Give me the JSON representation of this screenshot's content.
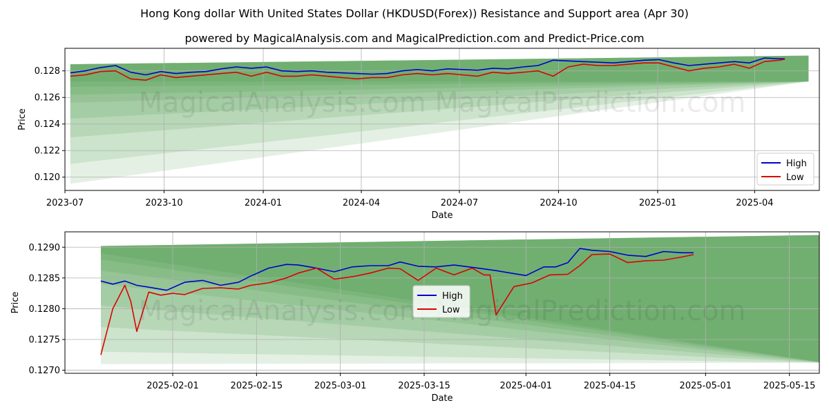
{
  "title": "Hong Kong dollar With United States Dollar (HKDUSD(Forex)) Resistance and Support area (Apr 30)",
  "subtitle": "powered by MagicalAnalysis.com and MagicalPrediction.com and Predict-Price.com",
  "watermarks": [
    "MagicalAnalysis.com",
    "MagicalPrediction.com"
  ],
  "colors": {
    "high": "#0000cc",
    "low": "#dd0000",
    "band": "#2e8b2e",
    "grid": "#b0b0b0"
  },
  "chart_data": [
    {
      "type": "line",
      "xlabel": "Date",
      "ylabel": "Price",
      "ylim": [
        0.119,
        0.1297
      ],
      "xlim": [
        "2023-07-01",
        "2025-05-31"
      ],
      "yticks": [
        0.12,
        0.122,
        0.124,
        0.126,
        0.128
      ],
      "ytick_labels": [
        "0.120",
        "0.122",
        "0.124",
        "0.126",
        "0.128"
      ],
      "xticks": [
        "2023-07-01",
        "2023-10-01",
        "2024-01-01",
        "2024-04-01",
        "2024-07-01",
        "2024-10-01",
        "2025-01-01",
        "2025-04-01"
      ],
      "xtick_labels": [
        "2023-07",
        "2023-10",
        "2024-01",
        "2024-04",
        "2024-07",
        "2024-10",
        "2025-01",
        "2025-04"
      ],
      "legend": {
        "position": "bottom-right",
        "entries": [
          "High",
          "Low"
        ]
      },
      "band": {
        "start": "2023-07-06",
        "end": "2025-05-21",
        "top_start": 0.1285,
        "top_end": 0.12915,
        "bottom_starts": [
          0.1272,
          0.1268,
          0.1262,
          0.1256,
          0.1244,
          0.123,
          0.121,
          0.1195
        ],
        "bottom_end": 0.1272
      },
      "series": [
        {
          "name": "High",
          "x": [
            "2023-07-06",
            "2023-07-20",
            "2023-08-03",
            "2023-08-17",
            "2023-08-31",
            "2023-09-14",
            "2023-09-28",
            "2023-10-12",
            "2023-10-26",
            "2023-11-09",
            "2023-11-23",
            "2023-12-07",
            "2023-12-21",
            "2024-01-04",
            "2024-01-18",
            "2024-02-01",
            "2024-02-15",
            "2024-02-29",
            "2024-03-14",
            "2024-03-28",
            "2024-04-11",
            "2024-04-25",
            "2024-05-09",
            "2024-05-23",
            "2024-06-06",
            "2024-06-20",
            "2024-07-04",
            "2024-07-18",
            "2024-08-01",
            "2024-08-15",
            "2024-08-29",
            "2024-09-12",
            "2024-09-26",
            "2024-10-10",
            "2024-10-24",
            "2024-11-07",
            "2024-11-21",
            "2024-12-05",
            "2024-12-19",
            "2025-01-02",
            "2025-01-16",
            "2025-01-30",
            "2025-02-13",
            "2025-02-27",
            "2025-03-13",
            "2025-03-27",
            "2025-04-10",
            "2025-04-24",
            "2025-04-29"
          ],
          "values": [
            0.12785,
            0.128,
            0.12825,
            0.1284,
            0.1279,
            0.1277,
            0.12795,
            0.1278,
            0.1279,
            0.12795,
            0.12815,
            0.1283,
            0.1282,
            0.1283,
            0.128,
            0.12795,
            0.128,
            0.1279,
            0.12785,
            0.1278,
            0.12775,
            0.1278,
            0.128,
            0.1281,
            0.128,
            0.12815,
            0.1281,
            0.12805,
            0.1282,
            0.12815,
            0.1283,
            0.1284,
            0.1288,
            0.12875,
            0.1287,
            0.12865,
            0.1286,
            0.1287,
            0.1288,
            0.12885,
            0.1286,
            0.1284,
            0.1285,
            0.1286,
            0.1287,
            0.1286,
            0.12897,
            0.12891,
            0.12892
          ]
        },
        {
          "name": "Low",
          "x": [
            "2023-07-06",
            "2023-07-20",
            "2023-08-03",
            "2023-08-17",
            "2023-08-31",
            "2023-09-14",
            "2023-09-28",
            "2023-10-12",
            "2023-10-26",
            "2023-11-09",
            "2023-11-23",
            "2023-12-07",
            "2023-12-21",
            "2024-01-04",
            "2024-01-18",
            "2024-02-01",
            "2024-02-15",
            "2024-02-29",
            "2024-03-14",
            "2024-03-28",
            "2024-04-11",
            "2024-04-25",
            "2024-05-09",
            "2024-05-23",
            "2024-06-06",
            "2024-06-20",
            "2024-07-04",
            "2024-07-18",
            "2024-08-01",
            "2024-08-15",
            "2024-08-29",
            "2024-09-12",
            "2024-09-26",
            "2024-10-10",
            "2024-10-24",
            "2024-11-07",
            "2024-11-21",
            "2024-12-05",
            "2024-12-19",
            "2025-01-02",
            "2025-01-16",
            "2025-01-30",
            "2025-02-13",
            "2025-02-27",
            "2025-03-13",
            "2025-03-27",
            "2025-04-10",
            "2025-04-24",
            "2025-04-29"
          ],
          "values": [
            0.1276,
            0.1277,
            0.12795,
            0.128,
            0.1274,
            0.1273,
            0.1277,
            0.1275,
            0.1276,
            0.1277,
            0.1278,
            0.1279,
            0.1276,
            0.1279,
            0.1276,
            0.1276,
            0.1277,
            0.1276,
            0.1275,
            0.1274,
            0.1275,
            0.1275,
            0.1277,
            0.1278,
            0.1277,
            0.1278,
            0.1277,
            0.1276,
            0.1279,
            0.1278,
            0.1279,
            0.128,
            0.1276,
            0.1283,
            0.1285,
            0.1284,
            0.1284,
            0.1285,
            0.1286,
            0.1286,
            0.1283,
            0.128,
            0.1282,
            0.1283,
            0.1285,
            0.1282,
            0.1287,
            0.1288,
            0.12888
          ]
        }
      ]
    },
    {
      "type": "line",
      "xlabel": "Date",
      "ylabel": "Price",
      "ylim": [
        0.12695,
        0.12925
      ],
      "xlim": [
        "2025-01-14",
        "2025-05-20"
      ],
      "yticks": [
        0.127,
        0.1275,
        0.128,
        0.1285,
        0.129
      ],
      "ytick_labels": [
        "0.1270",
        "0.1275",
        "0.1280",
        "0.1285",
        "0.1290"
      ],
      "xticks": [
        "2025-02-01",
        "2025-02-15",
        "2025-03-01",
        "2025-03-15",
        "2025-04-01",
        "2025-04-15",
        "2025-05-01",
        "2025-05-15"
      ],
      "xtick_labels": [
        "2025-02-01",
        "2025-02-15",
        "2025-03-01",
        "2025-03-15",
        "2025-04-01",
        "2025-04-15",
        "2025-05-01",
        "2025-05-15"
      ],
      "legend": {
        "position": "center",
        "entries": [
          "High",
          "Low"
        ]
      },
      "band": {
        "start": "2025-01-20",
        "end": "2025-05-21",
        "top_start": 0.12902,
        "top_end": 0.1292,
        "bottom_starts": [
          0.1289,
          0.1288,
          0.12862,
          0.1284,
          0.12805,
          0.1277,
          0.1273,
          0.1271
        ],
        "bottom_end": 0.12712
      },
      "series": [
        {
          "name": "High",
          "x": [
            "2025-01-20",
            "2025-01-22",
            "2025-01-24",
            "2025-01-26",
            "2025-01-28",
            "2025-01-31",
            "2025-02-03",
            "2025-02-06",
            "2025-02-09",
            "2025-02-12",
            "2025-02-14",
            "2025-02-17",
            "2025-02-20",
            "2025-02-22",
            "2025-02-25",
            "2025-02-28",
            "2025-03-03",
            "2025-03-06",
            "2025-03-09",
            "2025-03-11",
            "2025-03-14",
            "2025-03-17",
            "2025-03-20",
            "2025-03-24",
            "2025-03-27",
            "2025-03-30",
            "2025-04-01",
            "2025-04-04",
            "2025-04-06",
            "2025-04-08",
            "2025-04-10",
            "2025-04-12",
            "2025-04-15",
            "2025-04-18",
            "2025-04-21",
            "2025-04-24",
            "2025-04-27",
            "2025-04-29"
          ],
          "values": [
            0.12845,
            0.1284,
            0.12845,
            0.12838,
            0.12835,
            0.1283,
            0.12843,
            0.12846,
            0.12838,
            0.12843,
            0.12853,
            0.12866,
            0.12872,
            0.12871,
            0.12866,
            0.1286,
            0.12868,
            0.1287,
            0.1287,
            0.12876,
            0.12869,
            0.12868,
            0.12871,
            0.12866,
            0.12862,
            0.12857,
            0.12854,
            0.12868,
            0.12868,
            0.12875,
            0.12898,
            0.12895,
            0.12893,
            0.12887,
            0.12885,
            0.12893,
            0.12891,
            0.12891
          ]
        },
        {
          "name": "Low",
          "x": [
            "2025-01-20",
            "2025-01-22",
            "2025-01-24",
            "2025-01-25",
            "2025-01-26",
            "2025-01-28",
            "2025-01-30",
            "2025-02-01",
            "2025-02-03",
            "2025-02-06",
            "2025-02-09",
            "2025-02-12",
            "2025-02-14",
            "2025-02-17",
            "2025-02-20",
            "2025-02-22",
            "2025-02-25",
            "2025-02-28",
            "2025-03-03",
            "2025-03-06",
            "2025-03-09",
            "2025-03-11",
            "2025-03-14",
            "2025-03-17",
            "2025-03-20",
            "2025-03-23",
            "2025-03-25",
            "2025-03-26",
            "2025-03-27",
            "2025-03-30",
            "2025-04-02",
            "2025-04-05",
            "2025-04-08",
            "2025-04-10",
            "2025-04-12",
            "2025-04-15",
            "2025-04-18",
            "2025-04-21",
            "2025-04-24",
            "2025-04-27",
            "2025-04-29"
          ],
          "values": [
            0.12725,
            0.128,
            0.12838,
            0.12812,
            0.12763,
            0.12827,
            0.12822,
            0.12825,
            0.12823,
            0.12833,
            0.12834,
            0.12832,
            0.12838,
            0.12842,
            0.1285,
            0.12858,
            0.12866,
            0.12848,
            0.12852,
            0.12858,
            0.12866,
            0.12865,
            0.12846,
            0.12866,
            0.12855,
            0.12866,
            0.12855,
            0.12855,
            0.1279,
            0.12836,
            0.12842,
            0.12855,
            0.12856,
            0.1287,
            0.12888,
            0.12889,
            0.12875,
            0.12878,
            0.12879,
            0.12884,
            0.12888
          ]
        }
      ]
    }
  ]
}
